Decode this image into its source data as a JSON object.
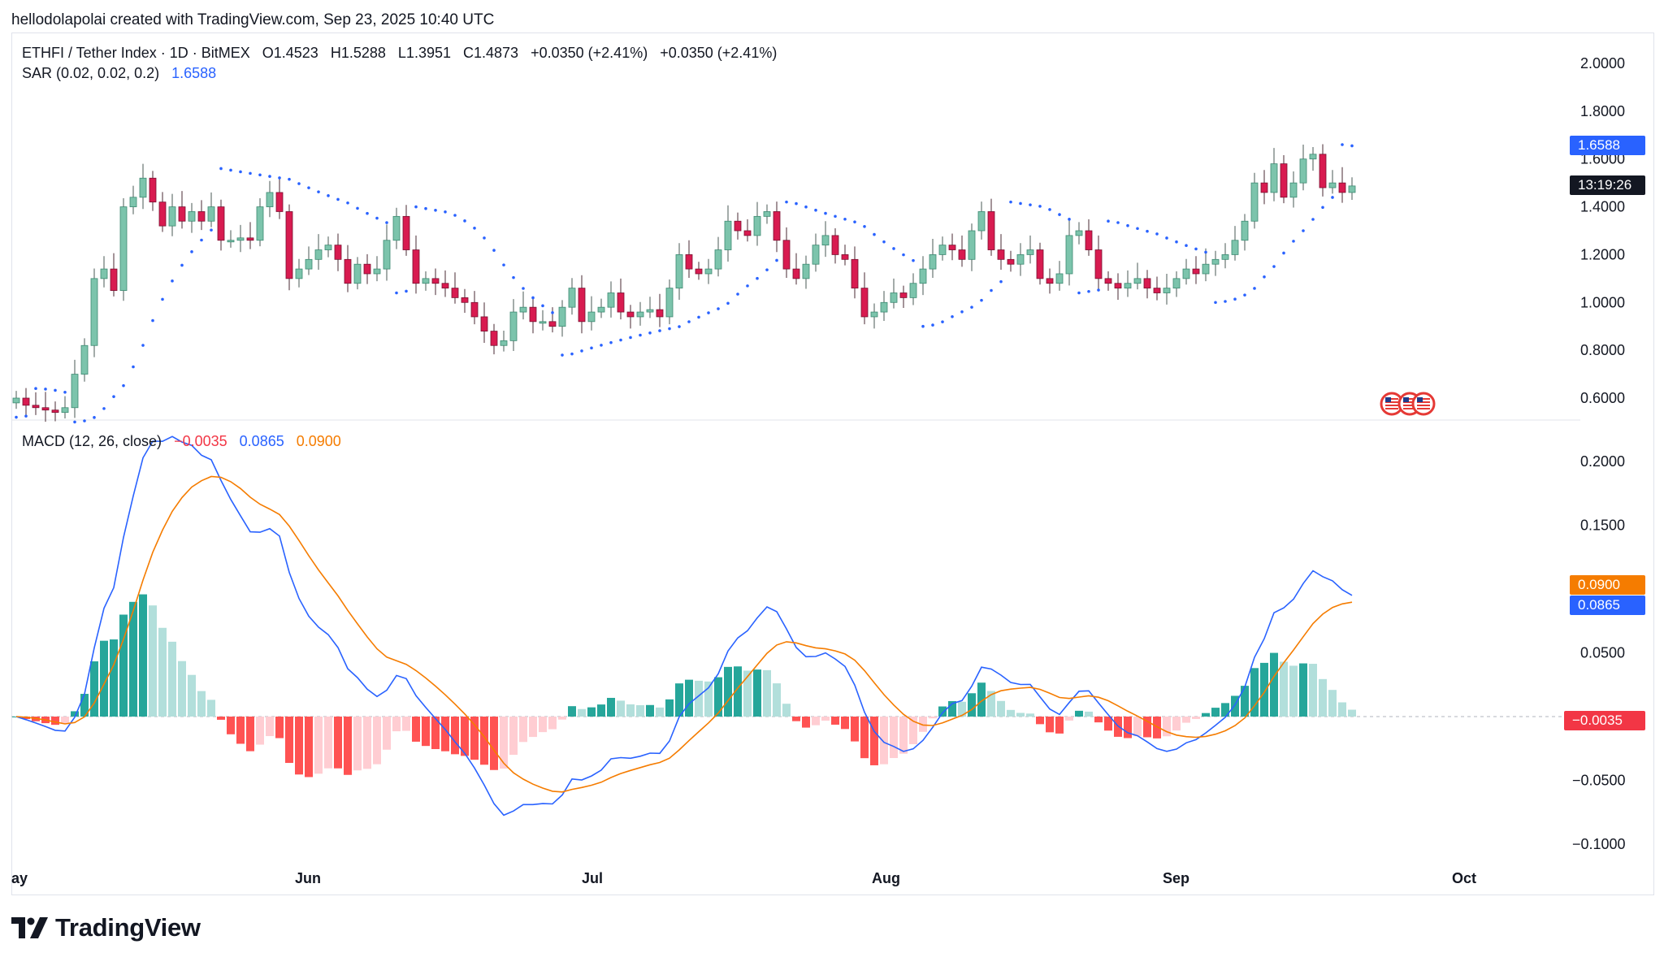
{
  "credit": "hellodolapolai created with TradingView.com, Sep 23, 2025 10:40 UTC",
  "brand": "TradingView",
  "legend": {
    "symbol": "ETHFI / Tether Index · 1D · BitMEX",
    "open": "O1.4523",
    "high": "H1.5288",
    "low": "L1.3951",
    "close": "C1.4873",
    "change1": "+0.0350 (+2.41%)",
    "change2": "+0.0350 (+2.41%)",
    "sar_label": "SAR (0.02, 0.02, 0.2)",
    "sar_value": "1.6588",
    "macd_label": "MACD (12, 26, close)",
    "macd_hist": "−0.0035",
    "macd_line": "0.0865",
    "macd_signal": "0.0900"
  },
  "price_tags": {
    "sar": "1.6588",
    "countdown": "13:19:26",
    "macd_signal": "0.0900",
    "macd_line": "0.0865",
    "macd_hist": "−0.0035"
  },
  "colors": {
    "up": "#7cc4ac",
    "up_border": "#3d8a72",
    "down": "#d81b50",
    "sar": "#2962ff",
    "macd": "#2962ff",
    "signal": "#f57c00",
    "hist_pos_strong": "#26a69a",
    "hist_pos_weak": "#b2dfdb",
    "hist_neg_strong": "#ff5252",
    "hist_neg_weak": "#ffcdd2"
  },
  "chart_data": [
    {
      "type": "candlestick",
      "title": "ETHFI / Tether Index · 1D · BitMEX",
      "x_labels": [
        "ay",
        "Jun",
        "Jul",
        "Aug",
        "Sep",
        "Oct"
      ],
      "y_ticks": [
        "2.0000",
        "1.8000",
        "1.6000",
        "1.4000",
        "1.2000",
        "1.0000",
        "0.8000",
        "0.6000"
      ],
      "ylim": [
        0.52,
        2.07
      ],
      "close_path_approx": [
        0.6,
        0.57,
        0.56,
        0.55,
        0.54,
        0.56,
        0.7,
        0.82,
        1.1,
        1.14,
        1.05,
        1.4,
        1.44,
        1.52,
        1.42,
        1.32,
        1.4,
        1.34,
        1.38,
        1.34,
        1.4,
        1.26,
        1.26,
        1.27,
        1.26,
        1.4,
        1.46,
        1.38,
        1.1,
        1.14,
        1.18,
        1.22,
        1.24,
        1.18,
        1.08,
        1.16,
        1.12,
        1.14,
        1.26,
        1.36,
        1.22,
        1.08,
        1.1,
        1.08,
        1.06,
        1.02,
        1.0,
        0.94,
        0.88,
        0.82,
        0.84,
        0.96,
        0.98,
        0.92,
        0.92,
        0.9,
        0.98,
        1.06,
        0.92,
        0.96,
        0.98,
        1.04,
        0.96,
        0.94,
        0.96,
        0.97,
        0.94,
        1.06,
        1.2,
        1.14,
        1.12,
        1.14,
        1.22,
        1.34,
        1.3,
        1.28,
        1.36,
        1.38,
        1.26,
        1.14,
        1.1,
        1.16,
        1.24,
        1.28,
        1.2,
        1.18,
        1.06,
        0.94,
        0.96,
        1.0,
        1.04,
        1.02,
        1.08,
        1.14,
        1.2,
        1.24,
        1.22,
        1.18,
        1.3,
        1.38,
        1.22,
        1.18,
        1.16,
        1.2,
        1.22,
        1.1,
        1.08,
        1.12,
        1.28,
        1.3,
        1.22,
        1.1,
        1.08,
        1.06,
        1.08,
        1.1,
        1.06,
        1.04,
        1.06,
        1.1,
        1.14,
        1.12,
        1.16,
        1.18,
        1.2,
        1.26,
        1.34,
        1.5,
        1.46,
        1.58,
        1.44,
        1.5,
        1.6,
        1.62,
        1.48,
        1.5,
        1.46,
        1.4873
      ],
      "sar": {
        "value": 1.6588
      }
    },
    {
      "type": "line",
      "title": "MACD (12, 26, close)",
      "y_ticks": [
        "0.2000",
        "0.1500",
        "0.0500",
        "−0.0500",
        "−0.1000"
      ],
      "ylim": [
        -0.1,
        0.2
      ],
      "series": [
        {
          "name": "MACD",
          "last": 0.0865
        },
        {
          "name": "Signal",
          "last": 0.09
        },
        {
          "name": "Histogram",
          "last": -0.0035
        }
      ]
    }
  ]
}
